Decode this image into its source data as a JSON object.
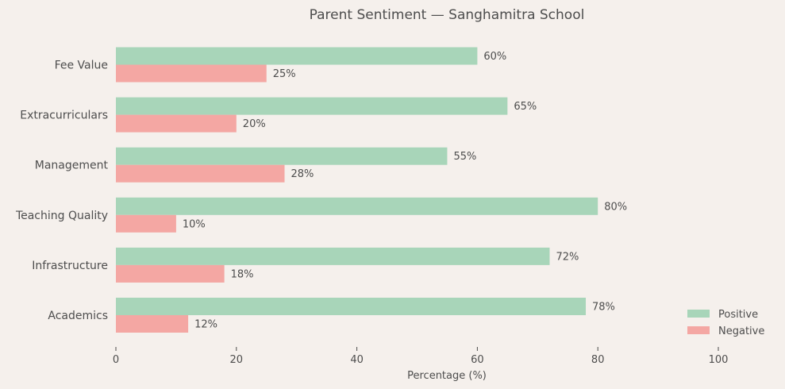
{
  "chart_data": {
    "type": "bar",
    "orientation": "horizontal",
    "title": "Parent Sentiment — Sanghamitra School",
    "xlabel": "Percentage (%)",
    "ylabel": "",
    "xlim": [
      0,
      100
    ],
    "xticks": [
      0,
      20,
      40,
      60,
      80,
      100
    ],
    "categories": [
      "Academics",
      "Infrastructure",
      "Teaching Quality",
      "Management",
      "Extracurriculars",
      "Fee Value"
    ],
    "series": [
      {
        "name": "Positive",
        "values": [
          78,
          72,
          80,
          55,
          65,
          60
        ],
        "color": "#a8d5b9"
      },
      {
        "name": "Negative",
        "values": [
          12,
          18,
          10,
          28,
          20,
          25
        ],
        "color": "#f4a7a3"
      }
    ],
    "value_suffix": "%",
    "grid": false,
    "legend_position": "bottom-right"
  }
}
